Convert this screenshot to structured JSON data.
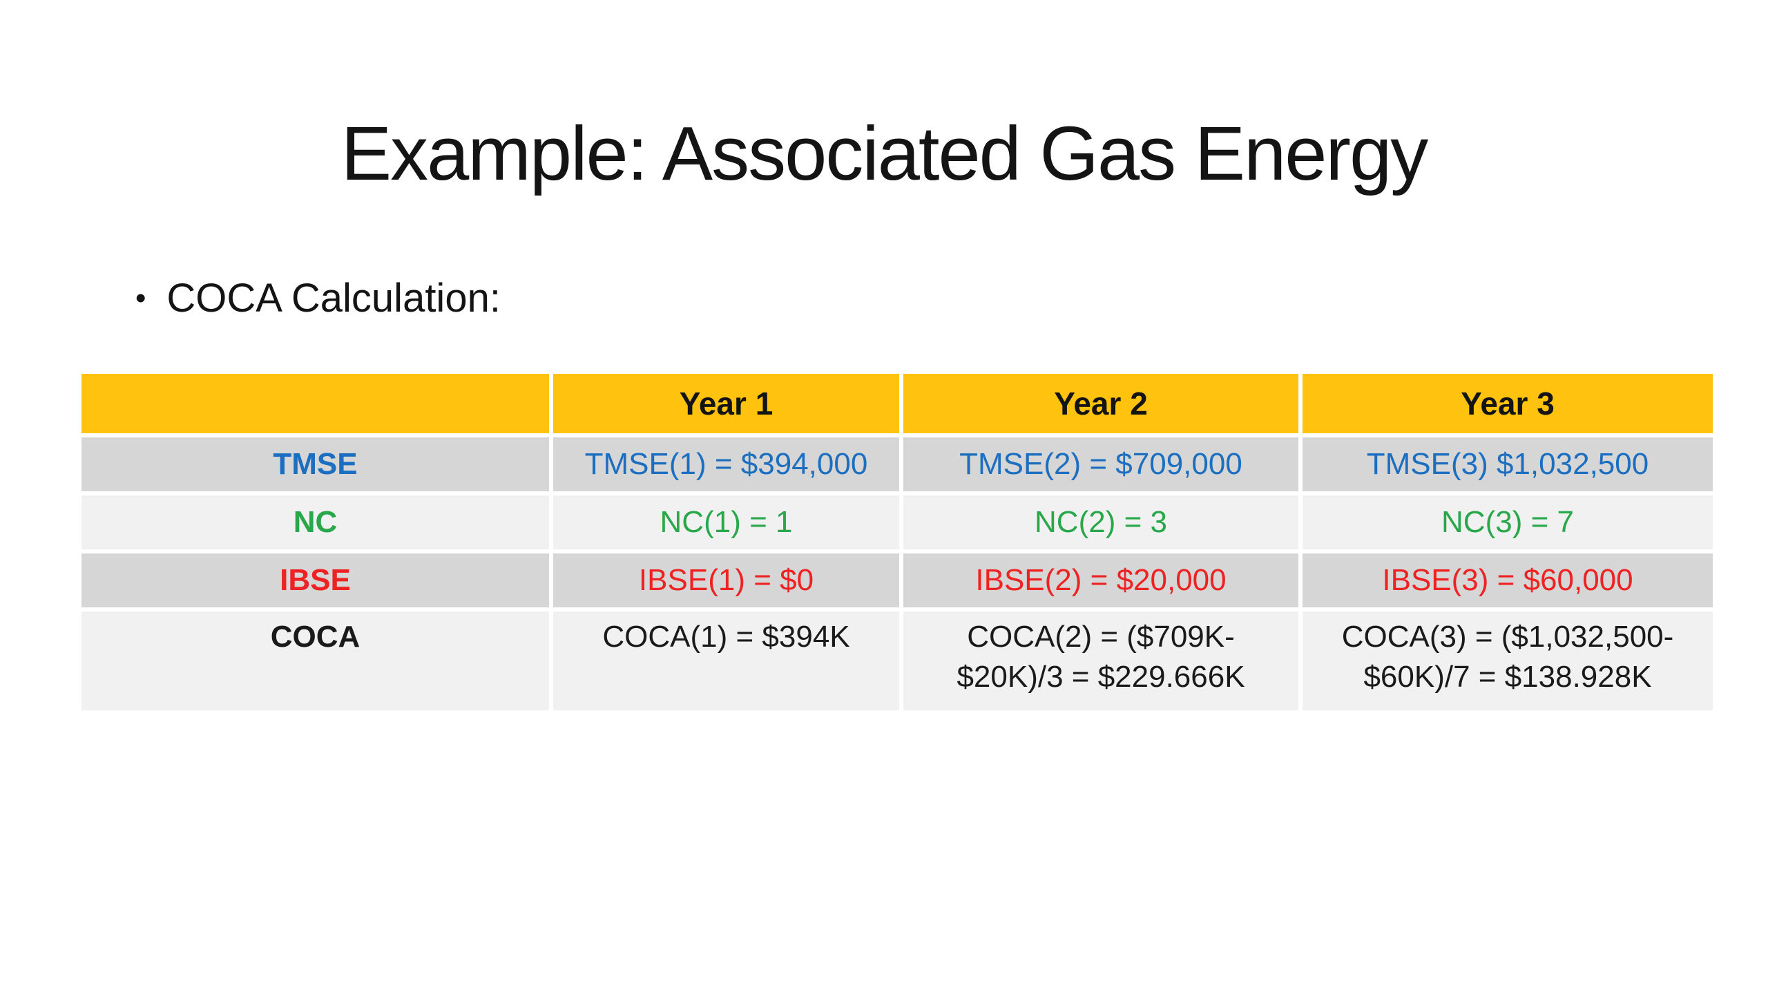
{
  "slide": {
    "title": "Example: Associated Gas Energy",
    "bullet_glyph": "•",
    "bullet_text": "COCA Calculation:"
  },
  "colors": {
    "header_bg": "#FFC20E",
    "row_gray_bg": "#D6D6D6",
    "row_light_bg": "#F1F1F1",
    "tmse_text": "#1C6FC0",
    "nc_text": "#28A84A",
    "ibse_text": "#EE2222",
    "coca_text": "#1A1A1A"
  },
  "table": {
    "columns": [
      "",
      "Year 1",
      "Year 2",
      "Year 3"
    ],
    "rows": [
      {
        "label": "TMSE",
        "cells": [
          "TMSE(1) = $394,000",
          "TMSE(2) = $709,000",
          "TMSE(3) $1,032,500"
        ]
      },
      {
        "label": "NC",
        "cells": [
          "NC(1) = 1",
          "NC(2) = 3",
          "NC(3) = 7"
        ]
      },
      {
        "label": "IBSE",
        "cells": [
          "IBSE(1) = $0",
          "IBSE(2) = $20,000",
          "IBSE(3) = $60,000"
        ]
      },
      {
        "label": "COCA",
        "cells": [
          "COCA(1) = $394K",
          "COCA(2) = ($709K-\n$20K)/3 = $229.666K",
          "COCA(3) = ($1,032,500-\n$60K)/7 = $138.928K"
        ]
      }
    ]
  }
}
